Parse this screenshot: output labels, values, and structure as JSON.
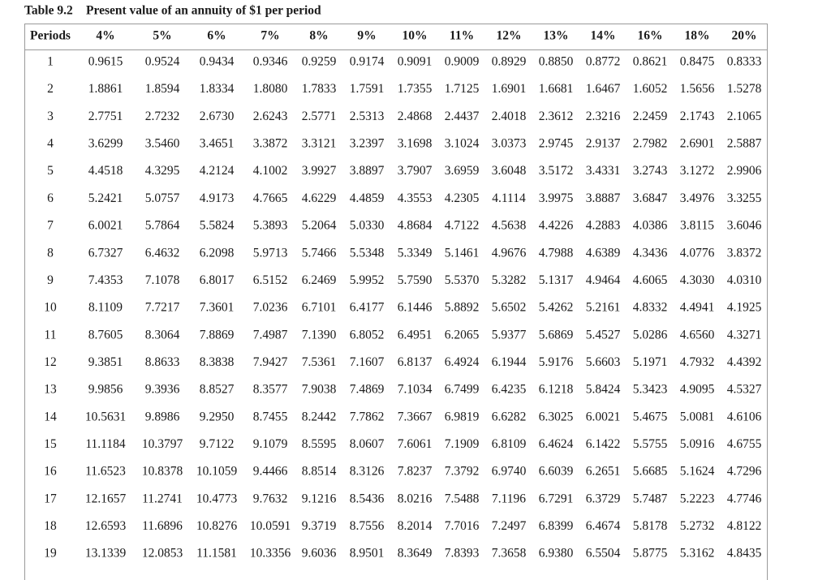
{
  "title": {
    "label": "Table 9.2",
    "text": "Present value of an annuity of $1 per period"
  },
  "table": {
    "header": [
      "Periods",
      "4%",
      "5%",
      "6%",
      "7%",
      "8%",
      "9%",
      "10%",
      "11%",
      "12%",
      "13%",
      "14%",
      "16%",
      "18%",
      "20%"
    ],
    "rows": [
      [
        "1",
        "0.9615",
        "0.9524",
        "0.9434",
        "0.9346",
        "0.9259",
        "0.9174",
        "0.9091",
        "0.9009",
        "0.8929",
        "0.8850",
        "0.8772",
        "0.8621",
        "0.8475",
        "0.8333"
      ],
      [
        "2",
        "1.8861",
        "1.8594",
        "1.8334",
        "1.8080",
        "1.7833",
        "1.7591",
        "1.7355",
        "1.7125",
        "1.6901",
        "1.6681",
        "1.6467",
        "1.6052",
        "1.5656",
        "1.5278"
      ],
      [
        "3",
        "2.7751",
        "2.7232",
        "2.6730",
        "2.6243",
        "2.5771",
        "2.5313",
        "2.4868",
        "2.4437",
        "2.4018",
        "2.3612",
        "2.3216",
        "2.2459",
        "2.1743",
        "2.1065"
      ],
      [
        "4",
        "3.6299",
        "3.5460",
        "3.4651",
        "3.3872",
        "3.3121",
        "3.2397",
        "3.1698",
        "3.1024",
        "3.0373",
        "2.9745",
        "2.9137",
        "2.7982",
        "2.6901",
        "2.5887"
      ],
      [
        "5",
        "4.4518",
        "4.3295",
        "4.2124",
        "4.1002",
        "3.9927",
        "3.8897",
        "3.7907",
        "3.6959",
        "3.6048",
        "3.5172",
        "3.4331",
        "3.2743",
        "3.1272",
        "2.9906"
      ],
      [
        "6",
        "5.2421",
        "5.0757",
        "4.9173",
        "4.7665",
        "4.6229",
        "4.4859",
        "4.3553",
        "4.2305",
        "4.1114",
        "3.9975",
        "3.8887",
        "3.6847",
        "3.4976",
        "3.3255"
      ],
      [
        "7",
        "6.0021",
        "5.7864",
        "5.5824",
        "5.3893",
        "5.2064",
        "5.0330",
        "4.8684",
        "4.7122",
        "4.5638",
        "4.4226",
        "4.2883",
        "4.0386",
        "3.8115",
        "3.6046"
      ],
      [
        "8",
        "6.7327",
        "6.4632",
        "6.2098",
        "5.9713",
        "5.7466",
        "5.5348",
        "5.3349",
        "5.1461",
        "4.9676",
        "4.7988",
        "4.6389",
        "4.3436",
        "4.0776",
        "3.8372"
      ],
      [
        "9",
        "7.4353",
        "7.1078",
        "6.8017",
        "6.5152",
        "6.2469",
        "5.9952",
        "5.7590",
        "5.5370",
        "5.3282",
        "5.1317",
        "4.9464",
        "4.6065",
        "4.3030",
        "4.0310"
      ],
      [
        "10",
        "8.1109",
        "7.7217",
        "7.3601",
        "7.0236",
        "6.7101",
        "6.4177",
        "6.1446",
        "5.8892",
        "5.6502",
        "5.4262",
        "5.2161",
        "4.8332",
        "4.4941",
        "4.1925"
      ],
      [
        "11",
        "8.7605",
        "8.3064",
        "7.8869",
        "7.4987",
        "7.1390",
        "6.8052",
        "6.4951",
        "6.2065",
        "5.9377",
        "5.6869",
        "5.4527",
        "5.0286",
        "4.6560",
        "4.3271"
      ],
      [
        "12",
        "9.3851",
        "8.8633",
        "8.3838",
        "7.9427",
        "7.5361",
        "7.1607",
        "6.8137",
        "6.4924",
        "6.1944",
        "5.9176",
        "5.6603",
        "5.1971",
        "4.7932",
        "4.4392"
      ],
      [
        "13",
        "9.9856",
        "9.3936",
        "8.8527",
        "8.3577",
        "7.9038",
        "7.4869",
        "7.1034",
        "6.7499",
        "6.4235",
        "6.1218",
        "5.8424",
        "5.3423",
        "4.9095",
        "4.5327"
      ],
      [
        "14",
        "10.5631",
        "9.8986",
        "9.2950",
        "8.7455",
        "8.2442",
        "7.7862",
        "7.3667",
        "6.9819",
        "6.6282",
        "6.3025",
        "6.0021",
        "5.4675",
        "5.0081",
        "4.6106"
      ],
      [
        "15",
        "11.1184",
        "10.3797",
        "9.7122",
        "9.1079",
        "8.5595",
        "8.0607",
        "7.6061",
        "7.1909",
        "6.8109",
        "6.4624",
        "6.1422",
        "5.5755",
        "5.0916",
        "4.6755"
      ],
      [
        "16",
        "11.6523",
        "10.8378",
        "10.1059",
        "9.4466",
        "8.8514",
        "8.3126",
        "7.8237",
        "7.3792",
        "6.9740",
        "6.6039",
        "6.2651",
        "5.6685",
        "5.1624",
        "4.7296"
      ],
      [
        "17",
        "12.1657",
        "11.2741",
        "10.4773",
        "9.7632",
        "9.1216",
        "8.5436",
        "8.0216",
        "7.5488",
        "7.1196",
        "6.7291",
        "6.3729",
        "5.7487",
        "5.2223",
        "4.7746"
      ],
      [
        "18",
        "12.6593",
        "11.6896",
        "10.8276",
        "10.0591",
        "9.3719",
        "8.7556",
        "8.2014",
        "7.7016",
        "7.2497",
        "6.8399",
        "6.4674",
        "5.8178",
        "5.2732",
        "4.8122"
      ],
      [
        "19",
        "13.1339",
        "12.0853",
        "11.1581",
        "10.3356",
        "9.6036",
        "8.9501",
        "8.3649",
        "7.8393",
        "7.3658",
        "6.9380",
        "6.5504",
        "5.8775",
        "5.3162",
        "4.8435"
      ]
    ]
  }
}
